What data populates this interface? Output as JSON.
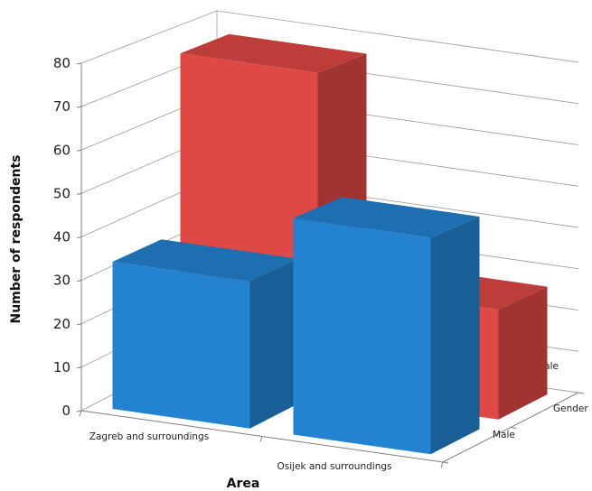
{
  "chart_data": {
    "type": "bar",
    "variant": "3d-column",
    "title": "",
    "xlabel": "Area",
    "ylabel": "Number of respondents",
    "zlabel": "Gender",
    "categories": [
      "Zagreb and surroundings",
      "Osijek and surroundings"
    ],
    "series": [
      {
        "name": "Male",
        "values": [
          34,
          50
        ],
        "color": "#2383d0"
      },
      {
        "name": "Female",
        "values": [
          76,
          26
        ],
        "color": "#e04845"
      }
    ],
    "ylim": [
      0,
      80
    ],
    "yticks": [
      "0",
      "10",
      "20",
      "30",
      "40",
      "50",
      "60",
      "70",
      "80"
    ],
    "grid": true,
    "legend": "none"
  }
}
